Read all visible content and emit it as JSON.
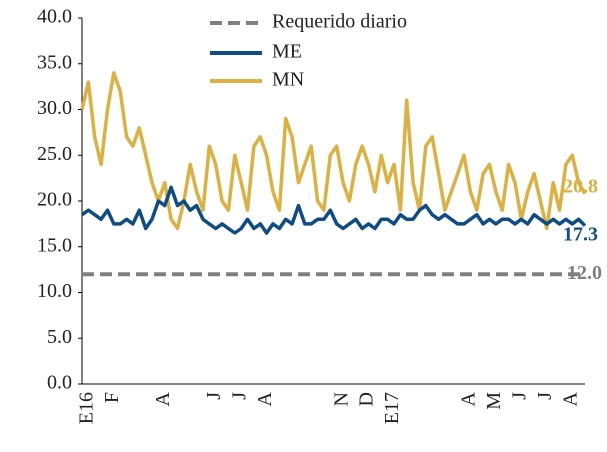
{
  "chart_data": {
    "type": "line",
    "categories": [
      "E16",
      null,
      null,
      null,
      "F",
      null,
      null,
      null,
      null,
      null,
      null,
      null,
      "A",
      null,
      null,
      null,
      null,
      null,
      null,
      null,
      "J",
      null,
      null,
      null,
      "J",
      null,
      null,
      null,
      "A",
      null,
      null,
      null,
      null,
      null,
      null,
      null,
      null,
      null,
      null,
      null,
      "N",
      null,
      null,
      null,
      "D",
      null,
      null,
      null,
      "E17",
      null,
      null,
      null,
      null,
      null,
      null,
      null,
      null,
      null,
      null,
      null,
      "A",
      null,
      null,
      null,
      "M",
      null,
      null,
      null,
      "J",
      null,
      null,
      null,
      "J",
      null,
      null,
      null,
      "A",
      null,
      null,
      null
    ],
    "series": [
      {
        "name": "ME",
        "color": "#0e4c86",
        "values": [
          18.5,
          19,
          18.5,
          18,
          19,
          17.5,
          17.5,
          18,
          17.5,
          19,
          17,
          18,
          20,
          19.5,
          21.5,
          19.5,
          20,
          19,
          19.5,
          18,
          17.5,
          17,
          17.5,
          17,
          16.5,
          17,
          18,
          17,
          17.5,
          16.5,
          17.5,
          17,
          18,
          17.5,
          19.5,
          17.5,
          17.5,
          18,
          18,
          19,
          17.5,
          17,
          17.5,
          18,
          17,
          17.5,
          17,
          18,
          18,
          17.5,
          18.5,
          18,
          18,
          19,
          19.5,
          18.5,
          18,
          18.5,
          18,
          17.5,
          17.5,
          18,
          18.5,
          17.5,
          18,
          17.5,
          18,
          18,
          17.5,
          18,
          17.5,
          18.5,
          18,
          17.5,
          18,
          17.5,
          18,
          17.5,
          18,
          17.3
        ]
      },
      {
        "name": "MN",
        "color": "#dcb041",
        "values": [
          30,
          33,
          27,
          24,
          30,
          34,
          32,
          27,
          26,
          28,
          25,
          22,
          20,
          22,
          18,
          17,
          20,
          24,
          21,
          19,
          26,
          24,
          20,
          19,
          25,
          22,
          19,
          26,
          27,
          25,
          21,
          19,
          29,
          27,
          22,
          24,
          26,
          20,
          19,
          25,
          26,
          22,
          20,
          24,
          26,
          24,
          21,
          25,
          22,
          24,
          19,
          31,
          22,
          19,
          26,
          27,
          23,
          19,
          21,
          23,
          25,
          21,
          19,
          23,
          24,
          21,
          19,
          24,
          22,
          18,
          21,
          23,
          20,
          17,
          22,
          19,
          24,
          25,
          22,
          20.8
        ]
      }
    ],
    "reference": {
      "name": "Requerido diario",
      "color": "#808080",
      "value": 12,
      "label": "12.0"
    },
    "ylim": [
      0,
      40
    ],
    "yticks": [
      {
        "value": 0,
        "label": "0.0"
      },
      {
        "value": 5,
        "label": "5.0"
      },
      {
        "value": 10,
        "label": "10.0"
      },
      {
        "value": 15,
        "label": "15.0"
      },
      {
        "value": 20,
        "label": "20.0"
      },
      {
        "value": 25,
        "label": "25.0"
      },
      {
        "value": 30,
        "label": "30.0"
      },
      {
        "value": 35,
        "label": "35.0"
      },
      {
        "value": 40,
        "label": "40.0"
      }
    ],
    "grid": false
  }
}
